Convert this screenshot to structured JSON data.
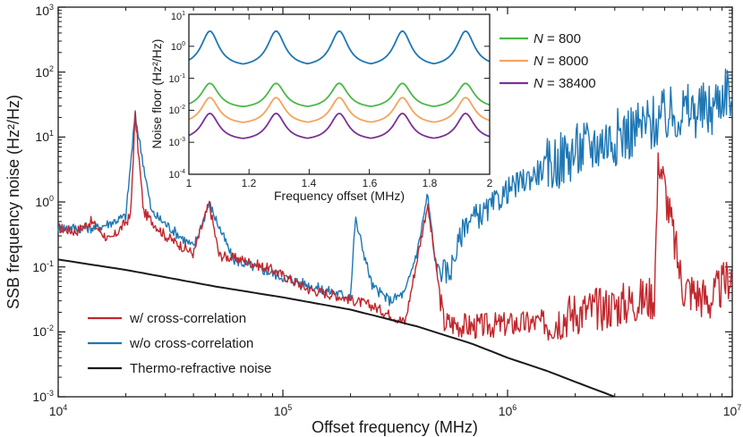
{
  "chart_data": [
    {
      "type": "line",
      "scale": "log-log",
      "title": "",
      "xlabel": "Offset frequency (MHz)",
      "ylabel": "SSB frequency noise (Hz²/Hz)",
      "xlim": [
        10000,
        10000000
      ],
      "ylim": [
        0.001,
        1000
      ],
      "xticks": [
        {
          "base": "10",
          "exp": "4"
        },
        {
          "base": "10",
          "exp": "5"
        },
        {
          "base": "10",
          "exp": "6"
        },
        {
          "base": "10",
          "exp": "7"
        }
      ],
      "yticks": [
        {
          "base": "10",
          "exp": "-3"
        },
        {
          "base": "10",
          "exp": "-2"
        },
        {
          "base": "10",
          "exp": "-1"
        },
        {
          "base": "10",
          "exp": "0"
        },
        {
          "base": "10",
          "exp": "1"
        },
        {
          "base": "10",
          "exp": "2"
        },
        {
          "base": "10",
          "exp": "3"
        }
      ],
      "legend_position": "bottom-left",
      "series": [
        {
          "name": "w/ cross-correlation",
          "color": "#c1272d",
          "x": [
            10000,
            12000,
            14000,
            17000,
            21000,
            22000,
            24000,
            30000,
            40000,
            47000,
            52000,
            65000,
            90000,
            130000,
            180000,
            250000,
            350000,
            440000,
            460000,
            520000,
            700000,
            1000000,
            1500000,
            2000000,
            3000000,
            4500000,
            4700000,
            6000000,
            8000000,
            10000000
          ],
          "y": [
            0.4,
            0.35,
            0.5,
            0.25,
            0.6,
            22,
            0.7,
            0.3,
            0.16,
            0.95,
            0.15,
            0.13,
            0.09,
            0.045,
            0.035,
            0.025,
            0.014,
            0.9,
            0.3,
            0.014,
            0.012,
            0.013,
            0.014,
            0.02,
            0.025,
            0.035,
            5.5,
            0.05,
            0.03,
            0.08
          ]
        },
        {
          "name": "w/o cross-correlation",
          "color": "#1f77b4",
          "x": [
            10000,
            15000,
            20000,
            22000,
            26000,
            40000,
            47000,
            60000,
            100000,
            150000,
            200000,
            210000,
            250000,
            300000,
            350000,
            400000,
            440000,
            480000,
            550000,
            650000,
            800000,
            1000000,
            1500000,
            2000000,
            3000000,
            4500000,
            6000000,
            8000000,
            9500000,
            10000000
          ],
          "y": [
            0.4,
            0.4,
            0.6,
            22,
            0.7,
            0.2,
            0.95,
            0.13,
            0.07,
            0.045,
            0.035,
            0.55,
            0.05,
            0.03,
            0.04,
            0.2,
            1.3,
            0.1,
            0.08,
            0.5,
            0.7,
            1.5,
            3.5,
            6,
            10,
            17,
            25,
            25,
            60,
            30
          ]
        },
        {
          "name": "Thermo-refractive noise",
          "color": "#1a1a1a",
          "x": [
            10000,
            20000,
            50000,
            100000,
            200000,
            400000,
            700000,
            1000000,
            1500000,
            2000000,
            3000000
          ],
          "y": [
            0.13,
            0.09,
            0.05,
            0.034,
            0.022,
            0.012,
            0.0065,
            0.004,
            0.0025,
            0.0017,
            0.001
          ]
        }
      ]
    },
    {
      "type": "line",
      "scale": "linear-log",
      "title": "",
      "xlabel": "Frequency offset (MHz)",
      "ylabel": "Noise floor (Hz²/Hz)",
      "xlim": [
        1,
        2
      ],
      "ylim": [
        0.0001,
        10
      ],
      "xticks": [
        "1",
        "1.2",
        "1.4",
        "1.6",
        "1.8",
        "2"
      ],
      "yticks": [
        {
          "base": "10",
          "exp": "-4"
        },
        {
          "base": "10",
          "exp": "-3"
        },
        {
          "base": "10",
          "exp": "-2"
        },
        {
          "base": "10",
          "exp": "-1"
        },
        {
          "base": "10",
          "exp": "0"
        },
        {
          "base": "10",
          "exp": "1"
        }
      ],
      "legend_position": "right",
      "peaks": [
        1.07,
        1.29,
        1.5,
        1.71,
        1.92
      ],
      "series": [
        {
          "name": "w/o cross-correlation",
          "label": "",
          "color": "#1f77b4",
          "peak_value": 3.0,
          "floor_value": 0.22
        },
        {
          "name": "N = 800",
          "label_prefix": "N",
          "label_suffix": " = 800",
          "color": "#4cb848",
          "peak_value": 0.07,
          "floor_value": 0.011
        },
        {
          "name": "N = 8000",
          "label_prefix": "N",
          "label_suffix": " = 8000",
          "color": "#f7a35c",
          "peak_value": 0.025,
          "floor_value": 0.0035
        },
        {
          "name": "N = 38400",
          "label_prefix": "N",
          "label_suffix": " = 38400",
          "color": "#7b3294",
          "peak_value": 0.008,
          "floor_value": 0.0011
        }
      ]
    }
  ]
}
